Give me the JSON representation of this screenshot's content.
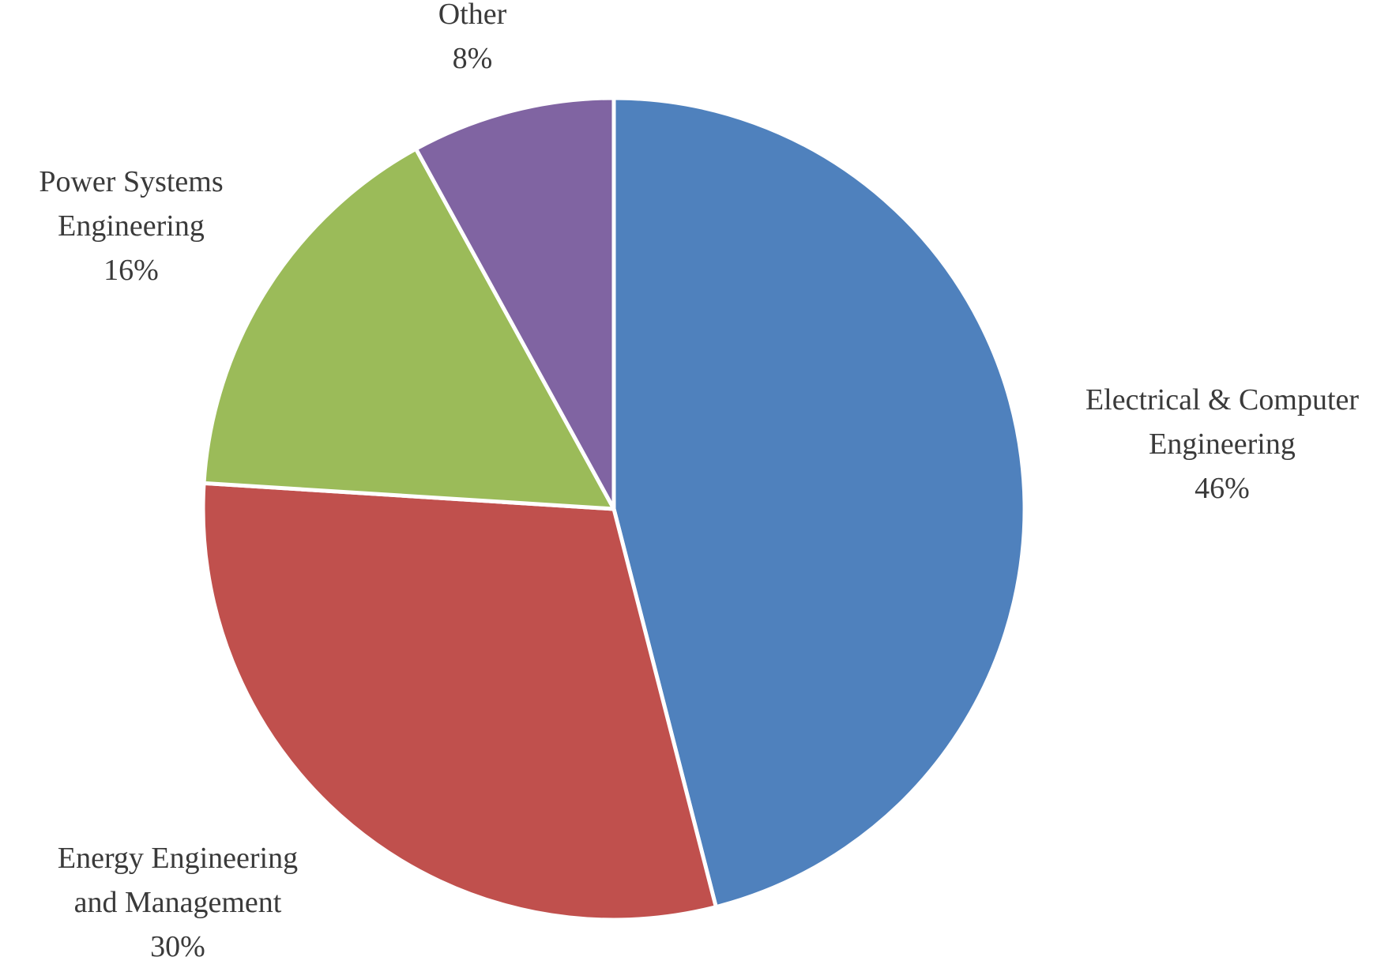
{
  "chart_data": {
    "type": "pie",
    "title": "",
    "start_angle_deg": 0,
    "direction": "clockwise",
    "show_legend": false,
    "slices": [
      {
        "label_lines": [
          "Electrical & Computer",
          "Engineering"
        ],
        "percent_label": "46%",
        "value": 46,
        "color": "#4F81BD"
      },
      {
        "label_lines": [
          "Energy Engineering",
          "and Management"
        ],
        "percent_label": "30%",
        "value": 30,
        "color": "#C0504D"
      },
      {
        "label_lines": [
          "Power Systems",
          "Engineering"
        ],
        "percent_label": "16%",
        "value": 16,
        "color": "#9BBB59"
      },
      {
        "label_lines": [
          "Other"
        ],
        "percent_label": "8%",
        "value": 8,
        "color": "#8064A2"
      }
    ]
  }
}
